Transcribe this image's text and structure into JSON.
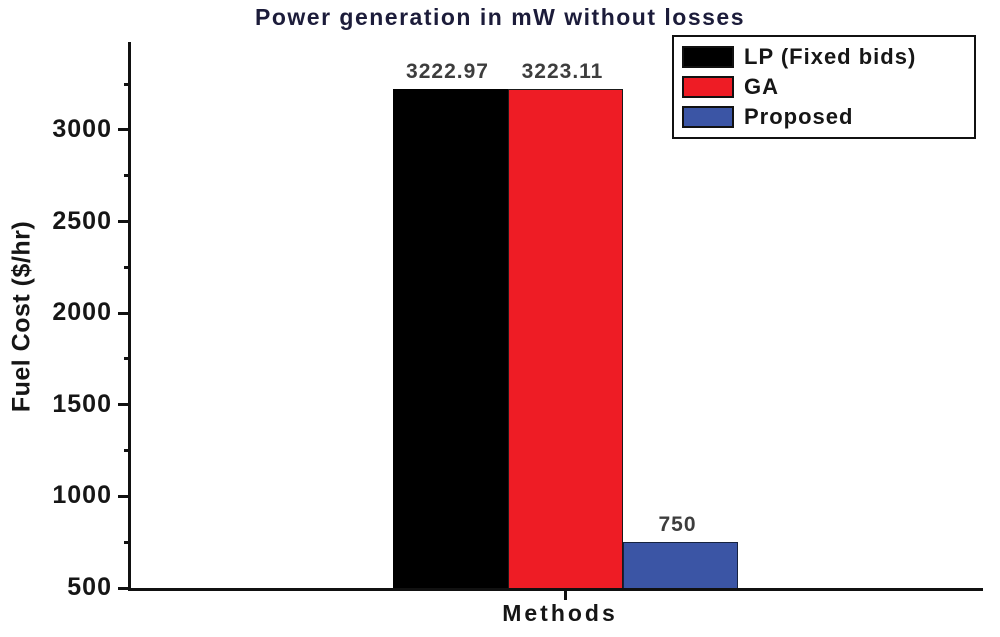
{
  "chart_data": {
    "type": "bar",
    "title": "Power generation in mW without losses",
    "xlabel": "Methods",
    "ylabel": "Fuel Cost ($/hr)",
    "ylim": [
      500,
      3480
    ],
    "yticks_major": [
      500,
      1000,
      1500,
      2000,
      2500,
      3000
    ],
    "yticks_minor": [
      750,
      1250,
      1750,
      2250,
      2750,
      3250
    ],
    "grid": false,
    "legend_position": "top-right",
    "series": [
      {
        "name": "LP (Fixed bids)",
        "value": 3222.97,
        "value_label": "3222.97",
        "color": "#000000",
        "border": "#000000"
      },
      {
        "name": "GA",
        "value": 3223.11,
        "value_label": "3223.11",
        "color": "#ee1c25",
        "border": "#1a1a1a"
      },
      {
        "name": "Proposed",
        "value": 750,
        "value_label": "750",
        "color": "#3b55a5",
        "border": "#16223f"
      }
    ]
  }
}
